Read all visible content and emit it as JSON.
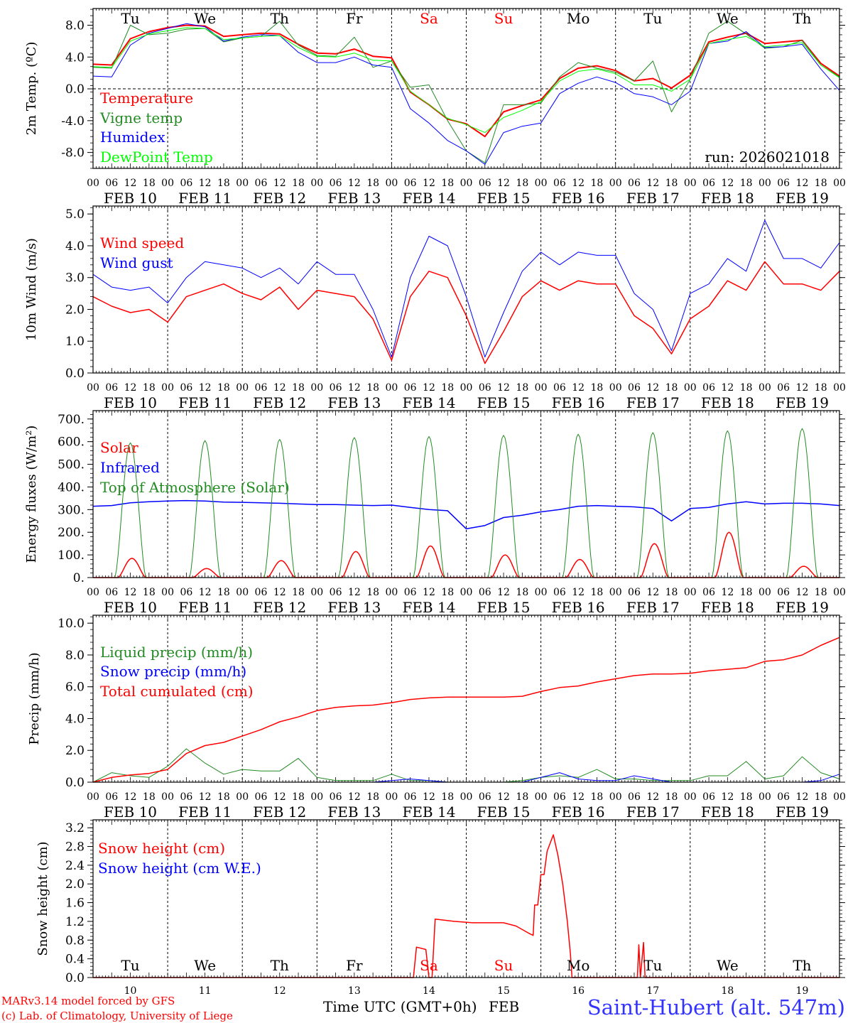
{
  "x_axis": {
    "hour_ticks": [
      "00",
      "06",
      "12",
      "18"
    ],
    "day_labels": [
      "FEB 10",
      "FEB 11",
      "FEB 12",
      "FEB 13",
      "FEB 14",
      "FEB 15",
      "FEB 16",
      "FEB 17",
      "FEB 18",
      "FEB 19"
    ],
    "weekdays": [
      "Tu",
      "We",
      "Th",
      "Fr",
      "Sa",
      "Su",
      "Mo",
      "Tu",
      "We",
      "Th"
    ],
    "weekend_flags": [
      false,
      false,
      false,
      false,
      true,
      true,
      false,
      false,
      false,
      false
    ],
    "dates": [
      "10",
      "11",
      "12",
      "13",
      "14",
      "15",
      "16",
      "17",
      "18",
      "19"
    ],
    "xlabel": "Time UTC (GMT+0h)",
    "month": "FEB"
  },
  "run_label": "run: 2026021018",
  "footer": {
    "model": "MARv3.14 model forced by GFS",
    "credit": "(c) Lab. of Climatology, University of Liege",
    "station": "Saint-Hubert (alt. 547m)"
  },
  "colors": {
    "red": "#ff0000",
    "green": "#228b22",
    "blue": "#0000ff",
    "lightgreen": "#00ff00",
    "weekend": "#ff0000",
    "station": "#3333ff"
  },
  "chart_data": [
    {
      "type": "line",
      "ylabel": "2m Temp. (ºC)",
      "ylim": [
        -10,
        10.1
      ],
      "y_ticks": [
        {
          "v": 8,
          "label": "8.0"
        },
        {
          "v": 4,
          "label": "4.0"
        },
        {
          "v": 0,
          "label": "0.0"
        },
        {
          "v": -4,
          "label": "-4.0"
        },
        {
          "v": -8,
          "label": "-8.0"
        }
      ],
      "zero_line": true,
      "x_hours_step": 6,
      "series": [
        {
          "name": "Temperature",
          "color": "#ff0000",
          "width": 2,
          "values": [
            3.1,
            3.0,
            6.3,
            7.2,
            7.7,
            8.0,
            7.9,
            6.6,
            6.8,
            7.0,
            6.9,
            5.6,
            4.5,
            4.4,
            5.0,
            4.1,
            3.9,
            -0.4,
            -2.0,
            -3.8,
            -4.4,
            -6.0,
            -2.9,
            -2.1,
            -1.4,
            1.3,
            2.6,
            2.9,
            2.3,
            1.0,
            1.3,
            0.1,
            1.7,
            5.9,
            6.5,
            7.0,
            5.7,
            5.9,
            6.1,
            3.2,
            1.6
          ]
        },
        {
          "name": "Vigne temp",
          "color": "#228b22",
          "width": 1,
          "values": [
            2.7,
            2.6,
            8.0,
            6.8,
            7.0,
            7.5,
            7.6,
            5.9,
            6.4,
            6.6,
            8.5,
            5.5,
            4.2,
            4.1,
            6.5,
            2.7,
            3.5,
            0.2,
            0.5,
            -4.0,
            -7.8,
            -9.3,
            -2.0,
            -2.0,
            -1.8,
            1.5,
            3.3,
            2.6,
            2.1,
            1.0,
            3.5,
            -2.9,
            1.2,
            7.0,
            8.5,
            6.9,
            5.1,
            5.3,
            6.1,
            3.0,
            1.5
          ]
        },
        {
          "name": "Humidex",
          "color": "#0000ff",
          "width": 1,
          "values": [
            1.6,
            1.5,
            5.5,
            7.0,
            7.6,
            8.2,
            7.8,
            6.0,
            6.5,
            6.8,
            6.7,
            4.6,
            3.3,
            3.3,
            4.0,
            3.0,
            2.7,
            -2.5,
            -4.3,
            -6.5,
            -7.8,
            -9.5,
            -5.5,
            -4.7,
            -4.3,
            -0.6,
            0.7,
            1.5,
            0.8,
            -0.6,
            -1.0,
            -2.0,
            -0.3,
            5.7,
            6.0,
            7.2,
            5.2,
            5.3,
            5.6,
            2.5,
            -0.2
          ]
        },
        {
          "name": "DewPoint Temp",
          "color": "#00ff00",
          "width": 1,
          "values": [
            2.8,
            2.7,
            6.0,
            6.9,
            7.3,
            7.7,
            7.6,
            6.2,
            6.4,
            6.6,
            6.7,
            5.2,
            4.1,
            4.0,
            4.5,
            3.6,
            3.5,
            -0.3,
            -2.0,
            -3.7,
            -4.5,
            -5.5,
            -3.6,
            -2.7,
            -1.6,
            1.0,
            2.2,
            2.5,
            1.9,
            0.5,
            0.5,
            -0.3,
            1.2,
            5.7,
            6.2,
            6.6,
            5.3,
            5.5,
            5.8,
            3.0,
            1.4
          ]
        }
      ]
    },
    {
      "type": "line",
      "ylabel": "10m Wind (m/s)",
      "ylim": [
        0,
        5.25
      ],
      "y_ticks": [
        {
          "v": 5,
          "label": "5.0"
        },
        {
          "v": 4,
          "label": "4.0"
        },
        {
          "v": 3,
          "label": "3.0"
        },
        {
          "v": 2,
          "label": "2.0"
        },
        {
          "v": 1,
          "label": "1.0"
        },
        {
          "v": 0,
          "label": "0.0"
        }
      ],
      "x_hours_step": 6,
      "series": [
        {
          "name": "Wind speed",
          "color": "#ff0000",
          "width": 1.5,
          "values": [
            2.4,
            2.1,
            1.9,
            2.0,
            1.6,
            2.4,
            2.6,
            2.8,
            2.5,
            2.3,
            2.7,
            2.0,
            2.6,
            2.5,
            2.4,
            1.7,
            0.4,
            2.4,
            3.2,
            3.0,
            1.8,
            0.3,
            1.3,
            2.4,
            2.9,
            2.6,
            2.9,
            2.8,
            2.8,
            1.8,
            1.4,
            0.6,
            1.7,
            2.1,
            2.9,
            2.6,
            3.5,
            2.8,
            2.8,
            2.6,
            3.2
          ]
        },
        {
          "name": "Wind gust",
          "color": "#0000ff",
          "width": 1,
          "values": [
            3.1,
            2.7,
            2.6,
            2.7,
            2.2,
            3.0,
            3.5,
            3.4,
            3.3,
            3.0,
            3.3,
            2.8,
            3.5,
            3.1,
            3.1,
            2.0,
            0.5,
            3.0,
            4.3,
            4.0,
            2.4,
            0.5,
            1.9,
            3.2,
            3.8,
            3.4,
            3.8,
            3.7,
            3.7,
            2.5,
            2.0,
            0.7,
            2.5,
            2.8,
            3.6,
            3.2,
            4.8,
            3.6,
            3.6,
            3.3,
            4.1
          ]
        }
      ]
    },
    {
      "type": "line",
      "ylabel": "Energy fluxes (W/m²)",
      "ylim": [
        0,
        737
      ],
      "y_ticks": [
        {
          "v": 700,
          "label": "700."
        },
        {
          "v": 600,
          "label": "600."
        },
        {
          "v": 500,
          "label": "500."
        },
        {
          "v": 400,
          "label": "400."
        },
        {
          "v": 300,
          "label": "300."
        },
        {
          "v": 200,
          "label": "200."
        },
        {
          "v": 100,
          "label": "100."
        },
        {
          "v": 0,
          "label": "0."
        }
      ],
      "x_hours_step": 6,
      "series": [
        {
          "name": "Solar",
          "color": "#ff0000",
          "width": 1.5,
          "daily_peak": [
            85,
            40,
            75,
            115,
            140,
            100,
            80,
            150,
            200,
            50
          ],
          "daylight_hours": [
            8,
            17
          ]
        },
        {
          "name": "Infrared",
          "color": "#0000ff",
          "width": 1.5,
          "values": [
            315,
            318,
            330,
            335,
            338,
            340,
            338,
            333,
            332,
            330,
            328,
            325,
            322,
            322,
            320,
            318,
            320,
            310,
            300,
            295,
            215,
            230,
            265,
            275,
            290,
            300,
            315,
            318,
            315,
            312,
            305,
            250,
            305,
            310,
            325,
            335,
            325,
            328,
            328,
            325,
            318
          ]
        },
        {
          "name": "Top of Atmosphere (Solar)",
          "color": "#228b22",
          "width": 1,
          "daily_peak": [
            595,
            605,
            610,
            618,
            623,
            628,
            633,
            640,
            648,
            658
          ],
          "daylight_hours": [
            7,
            17
          ]
        }
      ]
    },
    {
      "type": "line",
      "ylabel": "Precip (mm/h)",
      "ylim": [
        0,
        10.5
      ],
      "y_ticks": [
        {
          "v": 10,
          "label": "10.0"
        },
        {
          "v": 8,
          "label": "8.0"
        },
        {
          "v": 6,
          "label": "6.0"
        },
        {
          "v": 4,
          "label": "4.0"
        },
        {
          "v": 2,
          "label": "2.0"
        },
        {
          "v": 0,
          "label": "0.0"
        }
      ],
      "x_hours_step": 6,
      "series": [
        {
          "name": "Liquid precip (mm/h)",
          "color": "#228b22",
          "width": 1,
          "values": [
            0,
            0.6,
            0.4,
            0.3,
            1.0,
            2.1,
            1.2,
            0.5,
            0.8,
            0.7,
            0.7,
            1.5,
            0.3,
            0.1,
            0.1,
            0.1,
            0.5,
            0.1,
            0.1,
            0,
            0,
            0,
            0,
            0.1,
            0.3,
            0.4,
            0.3,
            0.8,
            0.2,
            0.2,
            0.1,
            0.1,
            0.1,
            0.4,
            0.4,
            1.3,
            0.2,
            0.4,
            1.6,
            0.6,
            0.2
          ]
        },
        {
          "name": "Snow precip (mm/h)",
          "color": "#0000ff",
          "width": 1,
          "values": [
            0,
            0,
            0,
            0,
            0,
            0,
            0,
            0,
            0,
            0,
            0,
            0,
            0,
            0,
            0,
            0,
            0.1,
            0.2,
            0.1,
            0,
            0,
            0,
            0,
            0,
            0.3,
            0.6,
            0.2,
            0.1,
            0.1,
            0.4,
            0.2,
            0,
            0,
            0,
            0,
            0,
            0,
            0,
            0,
            0.1,
            0.5
          ]
        },
        {
          "name": "Total cumulated (cm)",
          "color": "#ff0000",
          "width": 1.5,
          "values": [
            0,
            0.3,
            0.45,
            0.55,
            0.8,
            1.8,
            2.3,
            2.5,
            2.9,
            3.3,
            3.8,
            4.1,
            4.5,
            4.7,
            4.8,
            4.85,
            5.0,
            5.2,
            5.3,
            5.35,
            5.35,
            5.35,
            5.35,
            5.4,
            5.7,
            5.95,
            6.05,
            6.3,
            6.5,
            6.7,
            6.8,
            6.8,
            6.85,
            7.0,
            7.1,
            7.2,
            7.6,
            7.7,
            8.0,
            8.6,
            9.1
          ]
        }
      ]
    },
    {
      "type": "line",
      "ylabel": "Snow height (cm)",
      "ylim": [
        0,
        3.37
      ],
      "y_ticks": [
        {
          "v": 3.2,
          "label": "3.2"
        },
        {
          "v": 2.8,
          "label": "2.8"
        },
        {
          "v": 2.4,
          "label": "2.4"
        },
        {
          "v": 2.0,
          "label": "2.0"
        },
        {
          "v": 1.6,
          "label": "1.6"
        },
        {
          "v": 1.2,
          "label": "1.2"
        },
        {
          "v": 0.8,
          "label": "0.8"
        },
        {
          "v": 0.4,
          "label": "0.4"
        },
        {
          "v": 0,
          "label": "0.0"
        }
      ],
      "series": [
        {
          "name": "Snow height (cm)",
          "color": "#ff0000",
          "width": 1.5,
          "points": [
            [
              0,
              0
            ],
            [
              103,
              0
            ],
            [
              104,
              0.65
            ],
            [
              107,
              0.6
            ],
            [
              108,
              0
            ],
            [
              109,
              0
            ],
            [
              110,
              1.25
            ],
            [
              116,
              1.2
            ],
            [
              122,
              1.17
            ],
            [
              132,
              1.17
            ],
            [
              136,
              1.1
            ],
            [
              140,
              0.95
            ],
            [
              141.5,
              0.9
            ],
            [
              142,
              1.55
            ],
            [
              143,
              1.55
            ],
            [
              144,
              2.2
            ],
            [
              145,
              2.2
            ],
            [
              146,
              2.7
            ],
            [
              148,
              3.05
            ],
            [
              149.5,
              2.6
            ],
            [
              151,
              2.0
            ],
            [
              152.5,
              1.2
            ],
            [
              153.5,
              0.5
            ],
            [
              154,
              0
            ],
            [
              175,
              0
            ],
            [
              175.5,
              0.7
            ],
            [
              176,
              0
            ],
            [
              177,
              0.75
            ],
            [
              177.5,
              0
            ],
            [
              240,
              0
            ]
          ]
        },
        {
          "name": "Snow height (cm W.E.)",
          "color": "#0000ff",
          "width": 1,
          "points": [
            [
              0,
              0
            ],
            [
              240,
              0
            ]
          ]
        }
      ]
    }
  ]
}
